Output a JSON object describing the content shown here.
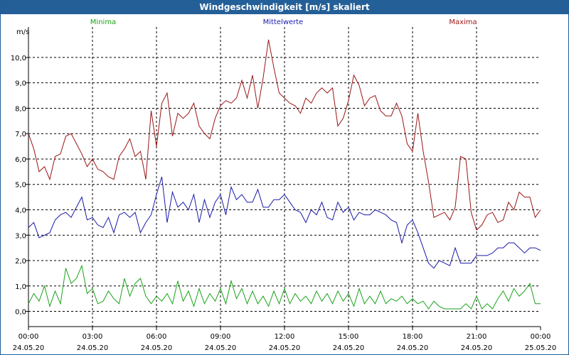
{
  "window": {
    "title": "Windgeschwindigkeit [m/s] skaliert"
  },
  "chart_data": {
    "type": "line",
    "title": "Windgeschwindigkeit [m/s] skaliert",
    "ylabel": "m/s",
    "xlabel": "",
    "ylim": [
      -0.6,
      11.2
    ],
    "yticks": [
      0,
      1,
      2,
      3,
      4,
      5,
      6,
      7,
      8,
      9,
      10
    ],
    "ytick_labels": [
      "0,0",
      "1,0",
      "2,0",
      "3,0",
      "4,0",
      "5,0",
      "6,0",
      "7,0",
      "8,0",
      "9,0",
      "10,0"
    ],
    "xlim": [
      0,
      24
    ],
    "xticks": [
      {
        "time": "00:00",
        "date": "24.05.20"
      },
      {
        "time": "03:00",
        "date": "24.05.20"
      },
      {
        "time": "06:00",
        "date": "24.05.20"
      },
      {
        "time": "09:00",
        "date": "24.05.20"
      },
      {
        "time": "12:00",
        "date": "24.05.20"
      },
      {
        "time": "15:00",
        "date": "24.05.20"
      },
      {
        "time": "18:00",
        "date": "24.05.20"
      },
      {
        "time": "21:00",
        "date": "24.05.20"
      },
      {
        "time": "00:00",
        "date": "25.05.20"
      }
    ],
    "grid": true,
    "legend_position": "top",
    "x_hours": [
      0,
      0.25,
      0.5,
      0.75,
      1,
      1.25,
      1.5,
      1.75,
      2,
      2.25,
      2.5,
      2.75,
      3,
      3.25,
      3.5,
      3.75,
      4,
      4.25,
      4.5,
      4.75,
      5,
      5.25,
      5.5,
      5.75,
      6,
      6.25,
      6.5,
      6.75,
      7,
      7.25,
      7.5,
      7.75,
      8,
      8.25,
      8.5,
      8.75,
      9,
      9.25,
      9.5,
      9.75,
      10,
      10.25,
      10.5,
      10.75,
      11,
      11.25,
      11.5,
      11.75,
      12,
      12.25,
      12.5,
      12.75,
      13,
      13.25,
      13.5,
      13.75,
      14,
      14.25,
      14.5,
      14.75,
      15,
      15.25,
      15.5,
      15.75,
      16,
      16.25,
      16.5,
      16.75,
      17,
      17.25,
      17.5,
      17.75,
      18,
      18.25,
      18.5,
      18.75,
      19,
      19.25,
      19.5,
      19.75,
      20,
      20.25,
      20.5,
      20.75,
      21,
      21.25,
      21.5,
      21.75,
      22,
      22.25,
      22.5,
      22.75,
      23,
      23.25,
      23.5,
      23.75,
      24
    ],
    "series": [
      {
        "name": "Minima",
        "color": "#1aa31a",
        "values": [
          0.3,
          0.7,
          0.4,
          1.0,
          0.2,
          0.8,
          0.3,
          1.7,
          1.1,
          1.3,
          1.8,
          0.7,
          0.9,
          0.3,
          0.4,
          0.8,
          0.5,
          0.3,
          1.3,
          0.6,
          1.1,
          1.3,
          0.6,
          0.3,
          0.6,
          0.4,
          0.7,
          0.3,
          1.2,
          0.4,
          0.8,
          0.2,
          0.9,
          0.3,
          0.7,
          0.4,
          0.9,
          0.3,
          1.2,
          0.5,
          0.9,
          0.3,
          0.8,
          0.3,
          0.6,
          0.2,
          0.8,
          0.3,
          0.9,
          0.3,
          0.7,
          0.4,
          0.6,
          0.3,
          0.8,
          0.4,
          0.7,
          0.3,
          0.8,
          0.4,
          0.7,
          0.2,
          0.9,
          0.3,
          0.6,
          0.3,
          0.8,
          0.3,
          0.5,
          0.4,
          0.6,
          0.3,
          0.5,
          0.3,
          0.4,
          0.1,
          0.4,
          0.2,
          0.1,
          0.1,
          0.1,
          0.1,
          0.3,
          0.1,
          0.6,
          0.1,
          0.3,
          0.1,
          0.5,
          0.8,
          0.4,
          0.9,
          0.6,
          0.8,
          1.1,
          0.3,
          0.3
        ]
      },
      {
        "name": "Mittelwerte",
        "color": "#1a1aa8",
        "values": [
          3.3,
          3.5,
          2.9,
          3.0,
          3.1,
          3.6,
          3.8,
          3.9,
          3.7,
          4.1,
          4.5,
          3.6,
          3.7,
          3.4,
          3.3,
          3.7,
          3.1,
          3.8,
          3.9,
          3.7,
          3.9,
          3.1,
          3.5,
          3.8,
          4.6,
          5.3,
          3.5,
          4.7,
          4.1,
          4.3,
          4.0,
          4.6,
          3.5,
          4.4,
          3.7,
          4.3,
          4.6,
          3.8,
          4.9,
          4.4,
          4.6,
          4.3,
          4.3,
          4.8,
          4.1,
          4.1,
          4.4,
          4.4,
          4.6,
          4.3,
          4.0,
          3.9,
          3.5,
          4.0,
          3.8,
          4.3,
          3.7,
          3.6,
          4.3,
          3.9,
          4.1,
          3.6,
          3.9,
          3.8,
          3.8,
          4.0,
          3.9,
          3.8,
          3.6,
          3.5,
          2.7,
          3.4,
          3.6,
          3.1,
          2.5,
          1.9,
          1.7,
          2.0,
          1.9,
          1.8,
          2.5,
          1.9,
          1.9,
          1.9,
          2.2,
          2.2,
          2.2,
          2.3,
          2.5,
          2.5,
          2.7,
          2.7,
          2.5,
          2.3,
          2.5,
          2.5,
          2.4
        ]
      },
      {
        "name": "Maxima",
        "color": "#9c1515",
        "values": [
          7.0,
          6.4,
          5.5,
          5.7,
          5.2,
          6.1,
          6.2,
          6.9,
          7.0,
          6.6,
          6.2,
          5.7,
          6.0,
          5.6,
          5.5,
          5.3,
          5.2,
          6.1,
          6.4,
          6.8,
          6.1,
          6.3,
          5.2,
          7.9,
          6.5,
          8.2,
          8.6,
          6.9,
          7.8,
          7.6,
          7.8,
          8.2,
          7.3,
          7.0,
          6.8,
          7.6,
          8.1,
          8.3,
          8.2,
          8.4,
          9.1,
          8.4,
          9.3,
          8.0,
          9.2,
          10.7,
          9.6,
          8.6,
          8.4,
          8.2,
          8.1,
          7.8,
          8.4,
          8.2,
          8.6,
          8.8,
          8.6,
          8.8,
          7.3,
          7.6,
          8.3,
          9.3,
          8.9,
          8.1,
          8.4,
          8.5,
          7.9,
          7.7,
          7.7,
          8.2,
          7.7,
          6.6,
          6.3,
          7.8,
          6.3,
          5.1,
          3.7,
          3.8,
          3.9,
          3.6,
          4.1,
          6.1,
          6.0,
          3.9,
          3.2,
          3.4,
          3.8,
          3.9,
          3.5,
          3.6,
          4.3,
          4.0,
          4.7,
          4.5,
          4.5,
          3.7,
          4.0
        ]
      }
    ]
  }
}
